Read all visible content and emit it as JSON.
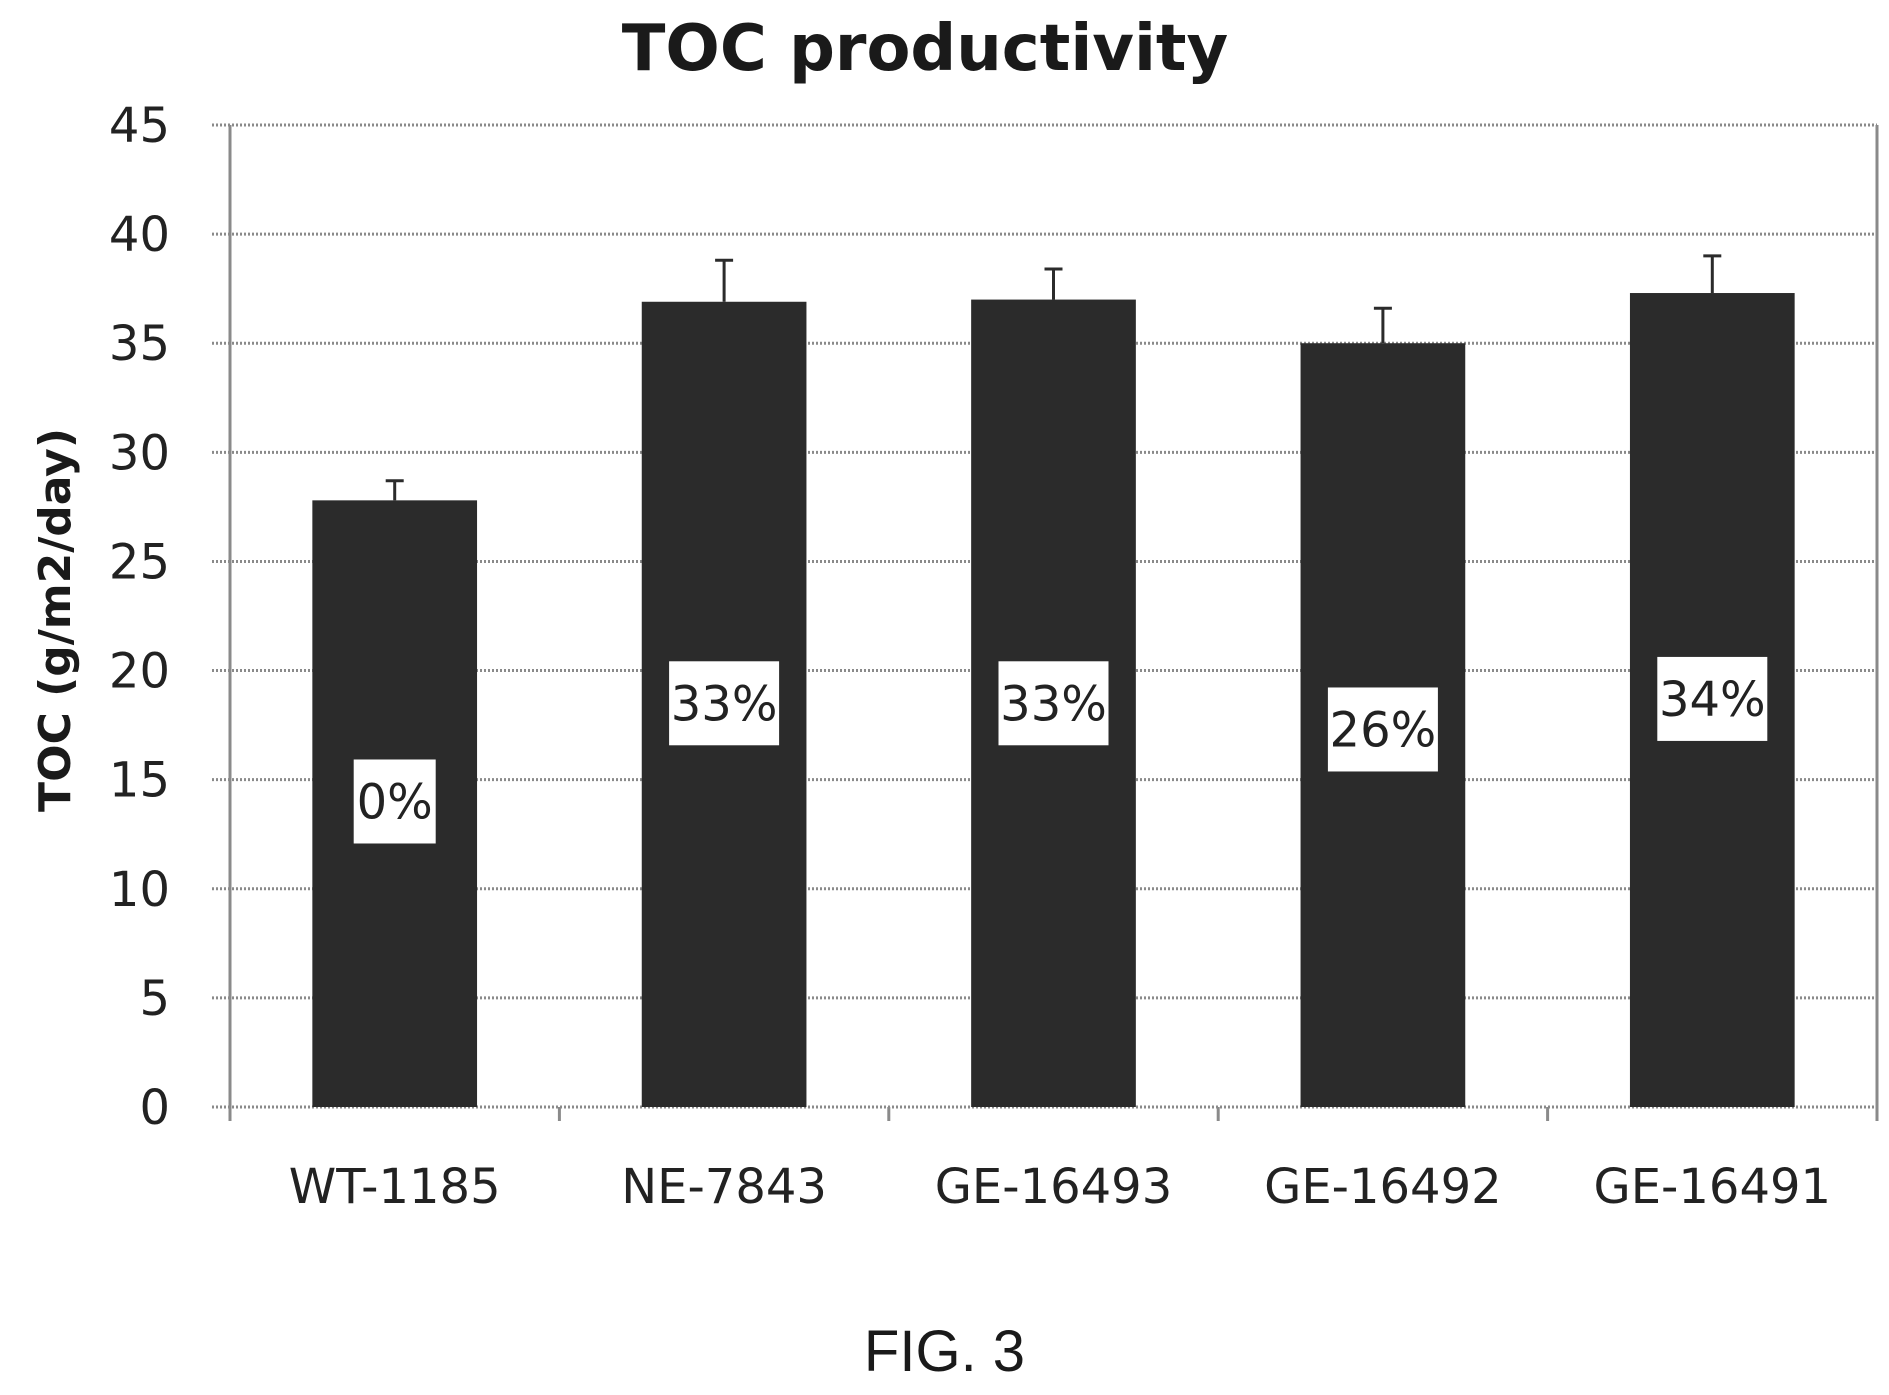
{
  "chart_data": {
    "type": "bar",
    "title": "TOC productivity",
    "xlabel": "",
    "ylabel": "TOC (g/m2/day)",
    "ylim": [
      0,
      45
    ],
    "yticks": [
      0,
      5,
      10,
      15,
      20,
      25,
      30,
      35,
      40,
      45
    ],
    "grid": true,
    "categories": [
      "WT-1185",
      "NE-7843",
      "GE-16493",
      "GE-16492",
      "GE-16491"
    ],
    "values": [
      27.8,
      36.9,
      37.0,
      35.0,
      37.3
    ],
    "error_upper": [
      28.7,
      38.8,
      38.4,
      36.6,
      39.0
    ],
    "bar_labels": [
      "0%",
      "33%",
      "33%",
      "26%",
      "34%"
    ],
    "bar_label_values": [
      14.0,
      18.5,
      18.5,
      17.3,
      18.7
    ],
    "bar_color": "#2b2b2b",
    "grid_color": "#8a8a8a"
  },
  "caption": "FIG. 3"
}
